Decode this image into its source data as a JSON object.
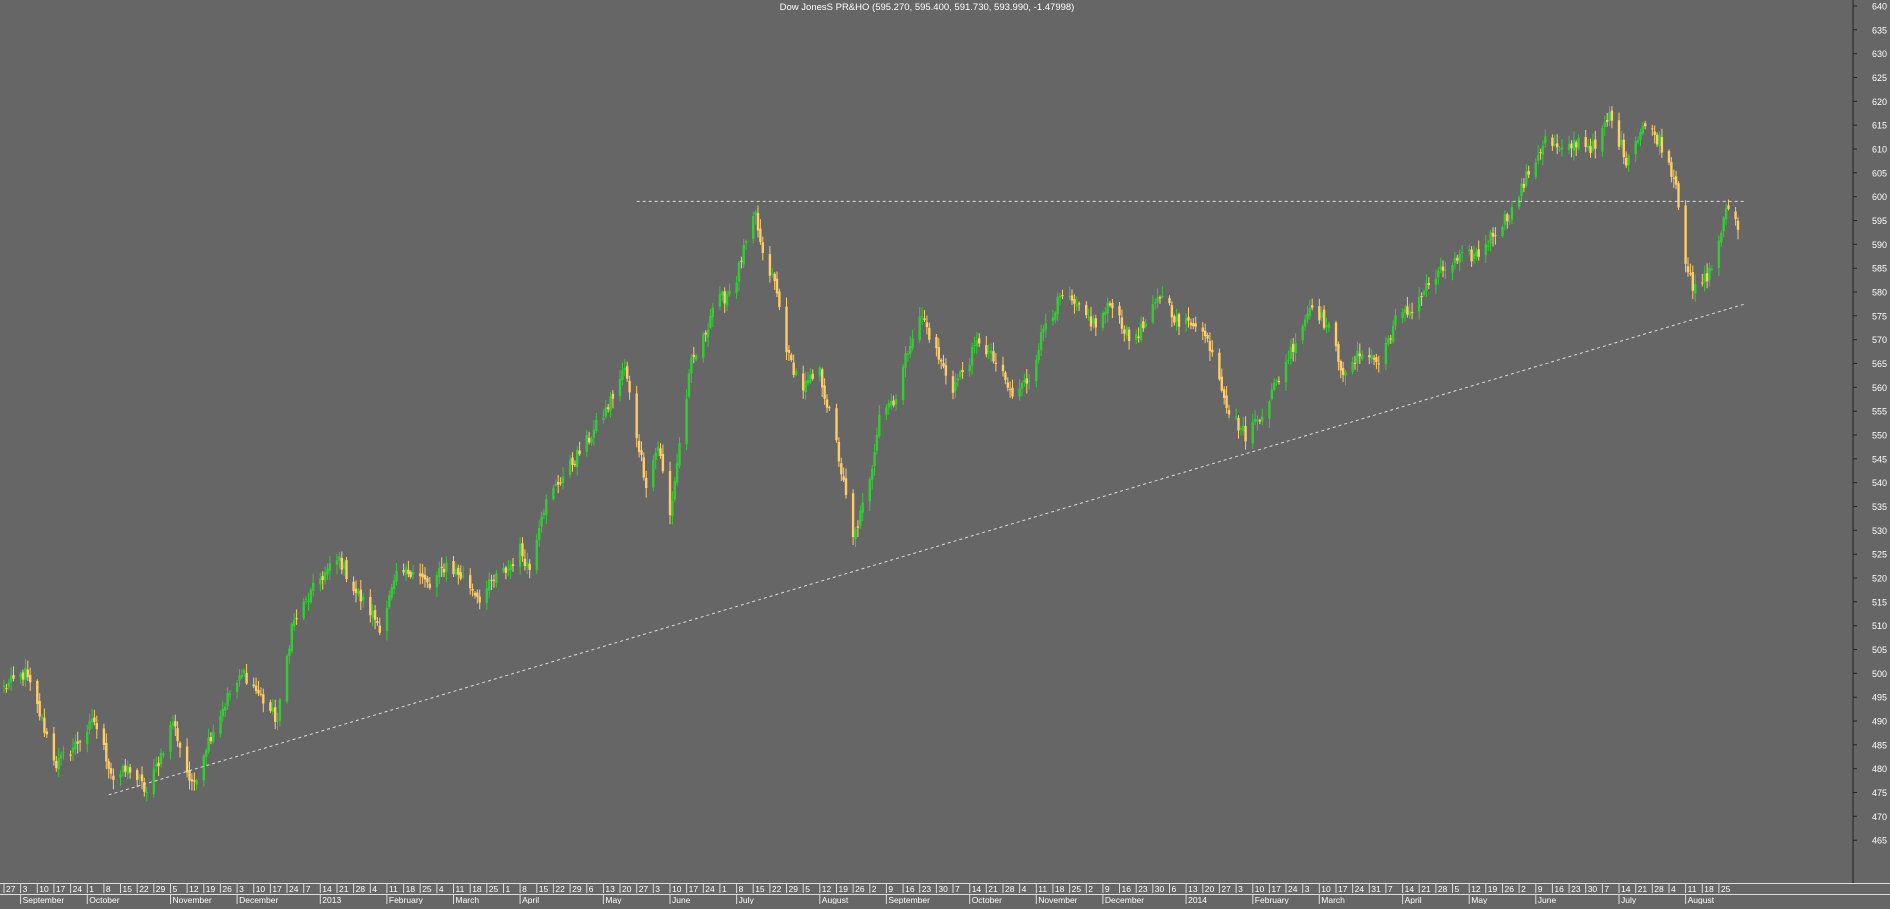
{
  "chart_data": {
    "type": "candlestick",
    "title": "Dow JonesS PR&HO (595.270, 595.400, 591.730, 593.990, -1.47998)",
    "xlabel": "",
    "ylabel": "",
    "ylim": [
      460,
      640
    ],
    "grid": false,
    "y_ticks": [
      465,
      470,
      475,
      480,
      485,
      490,
      495,
      500,
      505,
      510,
      515,
      520,
      525,
      530,
      535,
      540,
      545,
      550,
      555,
      560,
      565,
      570,
      575,
      580,
      585,
      590,
      595,
      600,
      605,
      610,
      615,
      620,
      625,
      630,
      635,
      640
    ],
    "x_day_ticks": [
      "27",
      "3",
      "10",
      "17",
      "24",
      "1",
      "8",
      "15",
      "22",
      "29",
      "5",
      "12",
      "19",
      "26",
      "3",
      "10",
      "17",
      "24",
      "7",
      "14",
      "21",
      "28",
      "4",
      "11",
      "18",
      "25",
      "4",
      "11",
      "18",
      "25",
      "1",
      "8",
      "15",
      "22",
      "29",
      "6",
      "13",
      "20",
      "27",
      "3",
      "10",
      "17",
      "24",
      "1",
      "8",
      "15",
      "22",
      "29",
      "5",
      "12",
      "19",
      "26",
      "2",
      "9",
      "16",
      "23",
      "30",
      "7",
      "14",
      "21",
      "28",
      "4",
      "11",
      "18",
      "25",
      "2",
      "9",
      "16",
      "23",
      "30",
      "6",
      "13",
      "20",
      "27",
      "3",
      "10",
      "17",
      "24",
      "3",
      "10",
      "17",
      "24",
      "31",
      "7",
      "14",
      "21",
      "28",
      "5",
      "12",
      "19",
      "26",
      "2",
      "9",
      "16",
      "23",
      "30",
      "7",
      "14",
      "21",
      "28",
      "4",
      "11",
      "18",
      "25"
    ],
    "x_month_labels": [
      "September",
      "October",
      "November",
      "December",
      "2013",
      "February",
      "March",
      "April",
      "May",
      "June",
      "July",
      "August",
      "September",
      "October",
      "November",
      "December",
      "2014",
      "February",
      "March",
      "April",
      "May",
      "June",
      "July",
      "August"
    ],
    "colors": {
      "background": "#666666",
      "up_candle": "#33cc33",
      "down_candle": "#ffcc66",
      "text": "#ffffff",
      "trendline": "#dddddd"
    },
    "anchors": [
      [
        "2012-08-27",
        497
      ],
      [
        "2012-09-05",
        500
      ],
      [
        "2012-09-12",
        490
      ],
      [
        "2012-09-18",
        481
      ],
      [
        "2012-09-26",
        485
      ],
      [
        "2012-10-04",
        490
      ],
      [
        "2012-10-12",
        478
      ],
      [
        "2012-10-19",
        480
      ],
      [
        "2012-10-26",
        475
      ],
      [
        "2012-11-01",
        483
      ],
      [
        "2012-11-06",
        490
      ],
      [
        "2012-11-14",
        476
      ],
      [
        "2012-11-20",
        485
      ],
      [
        "2012-11-29",
        495
      ],
      [
        "2012-12-06",
        500
      ],
      [
        "2012-12-13",
        495
      ],
      [
        "2012-12-20",
        490
      ],
      [
        "2012-12-26",
        510
      ],
      [
        "2013-01-07",
        520
      ],
      [
        "2013-01-15",
        524
      ],
      [
        "2013-01-22",
        517
      ],
      [
        "2013-01-28",
        513
      ],
      [
        "2013-02-01",
        510
      ],
      [
        "2013-02-08",
        520
      ],
      [
        "2013-02-15",
        522
      ],
      [
        "2013-02-22",
        518
      ],
      [
        "2013-03-01",
        523
      ],
      [
        "2013-03-08",
        520
      ],
      [
        "2013-03-15",
        516
      ],
      [
        "2013-03-22",
        520
      ],
      [
        "2013-03-27",
        522
      ],
      [
        "2013-04-01",
        526
      ],
      [
        "2013-04-05",
        522
      ],
      [
        "2013-04-10",
        534
      ],
      [
        "2013-04-17",
        540
      ],
      [
        "2013-04-24",
        545
      ],
      [
        "2013-05-01",
        550
      ],
      [
        "2013-05-08",
        556
      ],
      [
        "2013-05-15",
        564
      ],
      [
        "2013-05-20",
        550
      ],
      [
        "2013-05-24",
        540
      ],
      [
        "2013-05-29",
        548
      ],
      [
        "2013-06-03",
        533
      ],
      [
        "2013-06-07",
        548
      ],
      [
        "2013-06-12",
        565
      ],
      [
        "2013-06-17",
        570
      ],
      [
        "2013-06-21",
        577
      ],
      [
        "2013-06-26",
        579
      ],
      [
        "2013-07-01",
        583
      ],
      [
        "2013-07-03",
        587
      ],
      [
        "2013-07-09",
        596
      ],
      [
        "2013-07-12",
        587
      ],
      [
        "2013-07-17",
        582
      ],
      [
        "2013-07-23",
        566
      ],
      [
        "2013-07-29",
        560
      ],
      [
        "2013-08-05",
        563
      ],
      [
        "2013-08-12",
        548
      ],
      [
        "2013-08-19",
        528
      ],
      [
        "2013-08-26",
        540
      ],
      [
        "2013-08-30",
        555
      ],
      [
        "2013-09-06",
        558
      ],
      [
        "2013-09-12",
        570
      ],
      [
        "2013-09-17",
        575
      ],
      [
        "2013-09-24",
        566
      ],
      [
        "2013-09-30",
        560
      ],
      [
        "2013-10-07",
        566
      ],
      [
        "2013-10-11",
        570
      ],
      [
        "2013-10-18",
        565
      ],
      [
        "2013-10-25",
        558
      ],
      [
        "2013-11-01",
        562
      ],
      [
        "2013-11-08",
        574
      ],
      [
        "2013-11-15",
        579
      ],
      [
        "2013-11-22",
        576
      ],
      [
        "2013-11-29",
        573
      ],
      [
        "2013-12-06",
        578
      ],
      [
        "2013-12-13",
        570
      ],
      [
        "2013-12-20",
        573
      ],
      [
        "2013-12-27",
        580
      ],
      [
        "2014-01-03",
        573
      ],
      [
        "2014-01-10",
        574
      ],
      [
        "2014-01-17",
        568
      ],
      [
        "2014-01-24",
        555
      ],
      [
        "2014-01-31",
        550
      ],
      [
        "2014-02-07",
        555
      ],
      [
        "2014-02-14",
        562
      ],
      [
        "2014-02-21",
        570
      ],
      [
        "2014-02-28",
        578
      ],
      [
        "2014-03-07",
        572
      ],
      [
        "2014-03-14",
        562
      ],
      [
        "2014-03-21",
        568
      ],
      [
        "2014-03-28",
        565
      ],
      [
        "2014-04-04",
        574
      ],
      [
        "2014-04-10",
        576
      ],
      [
        "2014-04-17",
        581
      ],
      [
        "2014-04-25",
        585
      ],
      [
        "2014-05-02",
        587
      ],
      [
        "2014-05-09",
        588
      ],
      [
        "2014-05-16",
        593
      ],
      [
        "2014-05-23",
        597
      ],
      [
        "2014-05-30",
        605
      ],
      [
        "2014-06-06",
        612
      ],
      [
        "2014-06-13",
        609
      ],
      [
        "2014-06-20",
        612
      ],
      [
        "2014-06-27",
        610
      ],
      [
        "2014-07-03",
        617
      ],
      [
        "2014-07-10",
        608
      ],
      [
        "2014-07-17",
        615
      ],
      [
        "2014-07-24",
        612
      ],
      [
        "2014-07-31",
        603
      ],
      [
        "2014-08-04",
        587
      ],
      [
        "2014-08-07",
        580
      ],
      [
        "2014-08-11",
        582
      ],
      [
        "2014-08-15",
        585
      ],
      [
        "2014-08-19",
        593
      ],
      [
        "2014-08-22",
        598
      ],
      [
        "2014-08-26",
        594
      ]
    ],
    "trendlines": [
      {
        "style": "dashed",
        "from": [
          "2012-10-10",
          474.5
        ],
        "to": [
          "2014-08-29",
          577.5
        ]
      },
      {
        "style": "dashed",
        "from": [
          "2013-05-20",
          599
        ],
        "to": [
          "2014-08-29",
          599
        ]
      }
    ]
  }
}
